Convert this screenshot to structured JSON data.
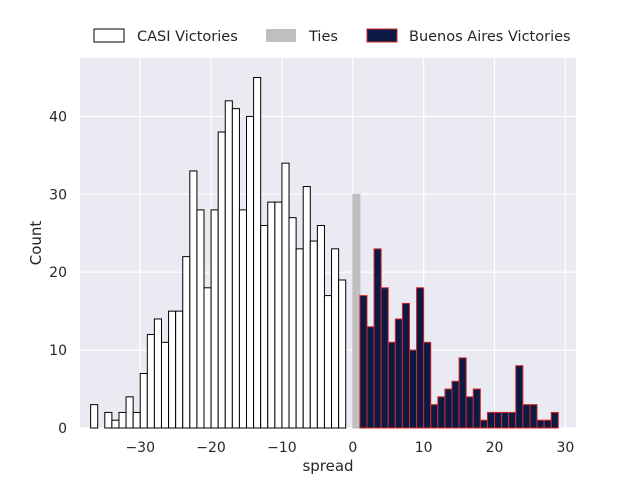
{
  "chart_data": {
    "type": "bar",
    "title": "",
    "xlabel": "spread",
    "ylabel": "Count",
    "xlim": [
      -38.5,
      31.5
    ],
    "ylim": [
      0,
      47.5
    ],
    "xticks": [
      -30,
      -20,
      -10,
      0,
      10,
      20,
      30
    ],
    "xtick_labels": [
      "−30",
      "−20",
      "−10",
      "0",
      "10",
      "20",
      "30"
    ],
    "yticks": [
      0,
      10,
      20,
      30,
      40
    ],
    "ytick_labels": [
      "0",
      "10",
      "20",
      "30",
      "40"
    ],
    "bin_width": 1,
    "grid": true,
    "legend_position": "top-center",
    "background_color": "#eaeaf2",
    "grid_color": "#ffffff",
    "series": [
      {
        "name": "CASI Victories",
        "fill": "#ffffff",
        "edge": "#000000",
        "bins": [
          [
            -37,
            3
          ],
          [
            -36,
            0
          ],
          [
            -35,
            2
          ],
          [
            -34,
            1
          ],
          [
            -33,
            2
          ],
          [
            -32,
            4
          ],
          [
            -31,
            2
          ],
          [
            -30,
            7
          ],
          [
            -29,
            12
          ],
          [
            -28,
            14
          ],
          [
            -27,
            11
          ],
          [
            -26,
            15
          ],
          [
            -25,
            15
          ],
          [
            -24,
            22
          ],
          [
            -23,
            33
          ],
          [
            -22,
            28
          ],
          [
            -21,
            18
          ],
          [
            -20,
            28
          ],
          [
            -19,
            38
          ],
          [
            -18,
            42
          ],
          [
            -17,
            41
          ],
          [
            -16,
            28
          ],
          [
            -15,
            40
          ],
          [
            -14,
            45
          ],
          [
            -13,
            26
          ],
          [
            -12,
            29
          ],
          [
            -11,
            29
          ],
          [
            -10,
            34
          ],
          [
            -9,
            27
          ],
          [
            -8,
            23
          ],
          [
            -7,
            31
          ],
          [
            -6,
            24
          ],
          [
            -5,
            26
          ],
          [
            -4,
            17
          ],
          [
            -3,
            23
          ],
          [
            -2,
            19
          ],
          [
            -1,
            0
          ]
        ]
      },
      {
        "name": "Ties",
        "fill": "#bfbfbf",
        "edge": "#bfbfbf",
        "bins": [
          [
            0,
            30
          ]
        ]
      },
      {
        "name": "Buenos Aires Victories",
        "fill": "#0b1a45",
        "edge": "#d62728",
        "bins": [
          [
            1,
            17
          ],
          [
            2,
            13
          ],
          [
            3,
            23
          ],
          [
            4,
            18
          ],
          [
            5,
            11
          ],
          [
            6,
            14
          ],
          [
            7,
            16
          ],
          [
            8,
            10
          ],
          [
            9,
            18
          ],
          [
            10,
            11
          ],
          [
            11,
            3
          ],
          [
            12,
            4
          ],
          [
            13,
            5
          ],
          [
            14,
            6
          ],
          [
            15,
            9
          ],
          [
            16,
            4
          ],
          [
            17,
            5
          ],
          [
            18,
            1
          ],
          [
            19,
            2
          ],
          [
            20,
            2
          ],
          [
            21,
            2
          ],
          [
            22,
            2
          ],
          [
            23,
            8
          ],
          [
            24,
            3
          ],
          [
            25,
            3
          ],
          [
            26,
            1
          ],
          [
            27,
            1
          ],
          [
            28,
            2
          ]
        ]
      }
    ]
  }
}
